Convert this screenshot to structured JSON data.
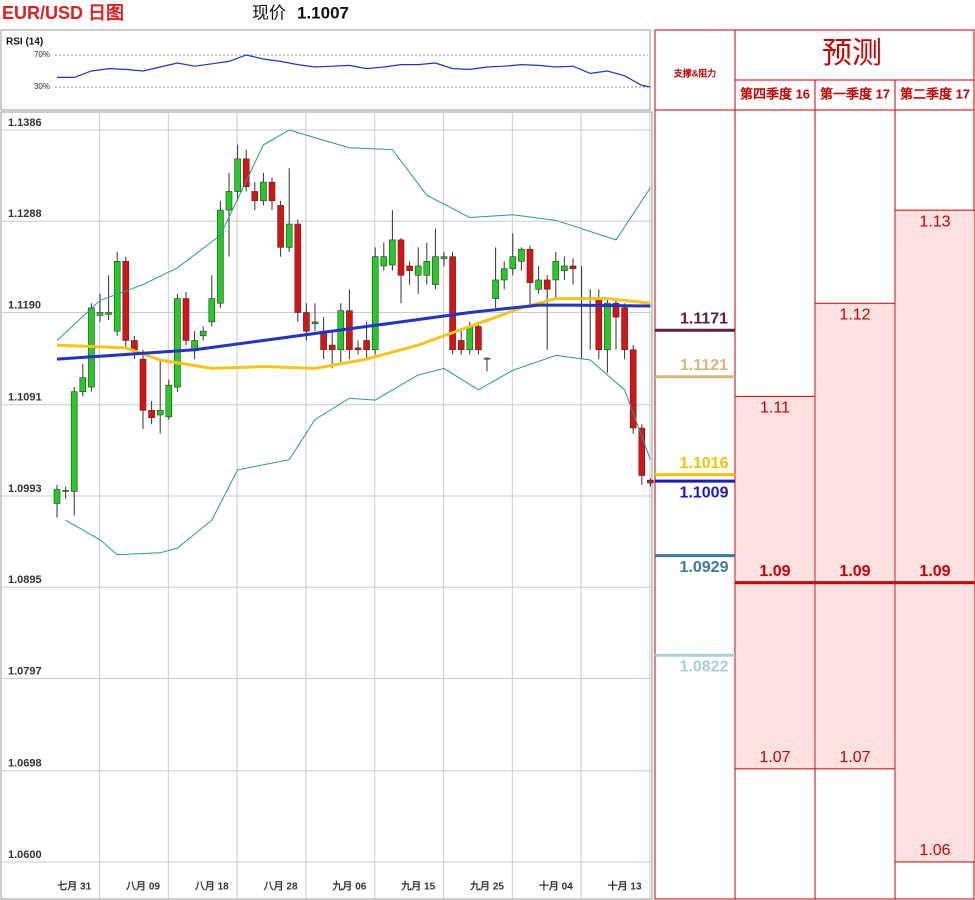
{
  "header": {
    "title": "EUR/USD 日图",
    "price_label": "现价",
    "price": 1.1007
  },
  "chart_data": [
    {
      "type": "candlestick",
      "categories": [
        null,
        null,
        "七月 31",
        null,
        null,
        null,
        null,
        null,
        null,
        null,
        "八月 09",
        null,
        null,
        null,
        null,
        null,
        null,
        null,
        "八月 18",
        null,
        null,
        null,
        null,
        null,
        null,
        null,
        "八月 28",
        null,
        null,
        null,
        null,
        null,
        null,
        null,
        "九月 06",
        null,
        null,
        null,
        null,
        null,
        null,
        null,
        "九月 15",
        null,
        null,
        null,
        null,
        null,
        null,
        null,
        "九月 25",
        null,
        null,
        null,
        null,
        null,
        null,
        null,
        "十月 04",
        null,
        null,
        null,
        null,
        null,
        null,
        null,
        "十月 13",
        null,
        null,
        null
      ],
      "open": [
        1.0985,
        1.0998,
        1.0998,
        1.1105,
        1.111,
        1.1187,
        1.1188,
        1.117,
        1.1245,
        1.116,
        1.114,
        1.1085,
        1.108,
        1.1078,
        1.111,
        1.1205,
        1.115,
        1.1165,
        1.118,
        1.12,
        1.13,
        1.132,
        1.1355,
        1.132,
        1.131,
        1.133,
        1.1305,
        1.126,
        1.1285,
        1.119,
        1.1178,
        1.117,
        1.1155,
        1.115,
        1.1192,
        1.1152,
        1.116,
        1.115,
        1.124,
        1.1241,
        1.1268,
        1.124,
        1.123,
        1.123,
        1.122,
        1.1248,
        1.125,
        1.116,
        1.115,
        1.1175,
        1.114,
        1.1205,
        1.1225,
        1.1237,
        1.1245,
        1.1258,
        1.1215,
        1.1225,
        1.1225,
        1.1235,
        1.124,
        1.1205,
        1.1205,
        1.1205,
        1.115,
        1.12,
        1.1195,
        1.115,
        1.1066,
        1.101
      ],
      "high": [
        1.1005,
        1.1003,
        1.111,
        1.1135,
        1.12,
        1.121,
        1.123,
        1.1255,
        1.125,
        1.1165,
        1.115,
        1.1095,
        1.114,
        1.1118,
        1.121,
        1.1212,
        1.117,
        1.1175,
        1.123,
        1.131,
        1.134,
        1.137,
        1.1365,
        1.133,
        1.134,
        1.1335,
        1.131,
        1.1345,
        1.129,
        1.12,
        1.12,
        1.1185,
        1.117,
        1.12,
        1.1215,
        1.116,
        1.118,
        1.126,
        1.1265,
        1.13,
        1.127,
        1.1245,
        1.126,
        1.1265,
        1.128,
        1.1255,
        1.1255,
        1.117,
        1.118,
        1.118,
        1.1142,
        1.126,
        1.1245,
        1.1275,
        1.126,
        1.1262,
        1.124,
        1.123,
        1.1255,
        1.125,
        1.1248,
        1.124,
        1.1215,
        1.1215,
        1.1205,
        1.1205,
        1.12,
        1.1155,
        1.107,
        1.1012
      ],
      "low": [
        1.097,
        1.099,
        1.0972,
        1.11,
        1.1105,
        1.118,
        1.1182,
        1.1165,
        1.115,
        1.114,
        1.1065,
        1.107,
        1.106,
        1.1075,
        1.1105,
        1.1155,
        1.114,
        1.116,
        1.1175,
        1.1195,
        1.125,
        1.131,
        1.132,
        1.13,
        1.1305,
        1.13,
        1.125,
        1.1255,
        1.118,
        1.116,
        1.117,
        1.114,
        1.113,
        1.1135,
        1.114,
        1.1145,
        1.114,
        1.1145,
        1.1235,
        1.1235,
        1.12,
        1.122,
        1.121,
        1.122,
        1.1215,
        1.124,
        1.1145,
        1.1145,
        1.1145,
        1.1145,
        1.1127,
        1.1195,
        1.1215,
        1.123,
        1.1235,
        1.1195,
        1.121,
        1.115,
        1.1205,
        1.1225,
        1.122,
        1.114,
        1.115,
        1.114,
        1.1125,
        1.115,
        1.114,
        1.106,
        1.1005,
        1.1003
      ],
      "close": [
        1.1,
        1.0999,
        1.1105,
        1.112,
        1.1195,
        1.119,
        1.119,
        1.1245,
        1.116,
        1.115,
        1.1085,
        1.1077,
        1.1085,
        1.1112,
        1.1205,
        1.116,
        1.116,
        1.117,
        1.1205,
        1.13,
        1.132,
        1.1355,
        1.1325,
        1.131,
        1.133,
        1.131,
        1.126,
        1.1285,
        1.119,
        1.117,
        1.118,
        1.115,
        1.115,
        1.1192,
        1.115,
        1.115,
        1.115,
        1.125,
        1.125,
        1.1268,
        1.123,
        1.1235,
        1.124,
        1.1245,
        1.125,
        1.125,
        1.115,
        1.115,
        1.1175,
        1.115,
        1.1141,
        1.1225,
        1.1237,
        1.125,
        1.1258,
        1.1222,
        1.1225,
        1.1215,
        1.1245,
        1.124,
        1.1237,
        1.1206,
        1.1206,
        1.115,
        1.12,
        1.1185,
        1.115,
        1.1066,
        1.1015,
        1.1007
      ],
      "up_color": "#22cc22",
      "down_color": "#dd1111",
      "overlays": [
        {
          "color": "#2a9a8a",
          "x": [
            0,
            5,
            10,
            14,
            19,
            24,
            27,
            31,
            34,
            39,
            43,
            48,
            53,
            58,
            65,
            69
          ],
          "values": [
            1.116,
            1.1203,
            1.122,
            1.1238,
            1.1273,
            1.137,
            1.1386,
            1.1375,
            1.1367,
            1.1365,
            1.1316,
            1.1292,
            1.1295,
            1.1289,
            1.1268,
            1.1324
          ]
        },
        {
          "color": "#2a9a8a",
          "x": [
            1,
            5,
            7,
            12,
            14,
            18,
            21,
            27,
            30,
            34,
            37,
            42,
            45,
            49,
            53,
            58,
            62,
            66,
            69
          ],
          "values": [
            1.0967,
            1.0946,
            1.093,
            1.0932,
            1.0937,
            1.0967,
            1.1021,
            1.1032,
            1.1075,
            1.1098,
            1.1096,
            1.1123,
            1.113,
            1.1107,
            1.1128,
            1.1144,
            1.1139,
            1.1107,
            1.1032
          ]
        },
        {
          "color": "#f5c518",
          "x": [
            0,
            8,
            12,
            18,
            24,
            30,
            36,
            42,
            48,
            54,
            58,
            64,
            69
          ],
          "values": [
            1.1155,
            1.1152,
            1.1139,
            1.113,
            1.1132,
            1.113,
            1.114,
            1.1155,
            1.1175,
            1.1195,
            1.1205,
            1.1205,
            1.12
          ]
        },
        {
          "color": "#2233cc",
          "x": [
            0,
            8,
            16,
            24,
            32,
            40,
            48,
            56,
            60,
            69
          ],
          "values": [
            1.114,
            1.1145,
            1.115,
            1.116,
            1.117,
            1.118,
            1.119,
            1.1198,
            1.1198,
            1.1197
          ]
        }
      ],
      "ylim": [
        1.06,
        1.1386
      ],
      "yticks": [
        1.1386,
        1.1288,
        {
          "value": 1.119,
          "label": "1.1190"
        },
        1.1091,
        1.0993,
        1.0895,
        1.0797,
        1.0698,
        {
          "value": 1.06,
          "label": "1.0600"
        }
      ],
      "grid": true
    },
    {
      "type": "line",
      "title": "RSI (14)",
      "color": "#2233cc",
      "x": [
        0,
        2,
        4,
        6,
        8,
        10,
        12,
        14,
        16,
        18,
        20,
        22,
        24,
        26,
        28,
        30,
        32,
        34,
        36,
        38,
        40,
        42,
        44,
        46,
        48,
        50,
        52,
        54,
        56,
        58,
        60,
        62,
        64,
        66,
        68,
        69
      ],
      "values": [
        42,
        42,
        50,
        53,
        52,
        50,
        55,
        60,
        56,
        59,
        62,
        70,
        65,
        62,
        58,
        55,
        56,
        57,
        53,
        55,
        58,
        58,
        60,
        53,
        52,
        55,
        56,
        58,
        57,
        55,
        56,
        47,
        50,
        44,
        32,
        30
      ],
      "ylim": [
        0,
        100
      ],
      "yticks": [
        {
          "value": 70,
          "label": "70%"
        },
        {
          "value": 30,
          "label": "30%"
        }
      ]
    }
  ],
  "support_resistance": {
    "title": "支撑&阻力",
    "levels": [
      {
        "value": 1.1171,
        "color": "#5c1f3f"
      },
      {
        "value": 1.1121,
        "color": "#d8b878"
      },
      {
        "value": 1.1016,
        "color": "#f5c400"
      },
      {
        "value": 1.1009,
        "color": "#1a1acc"
      },
      {
        "value": 1.0929,
        "color": "#3a7a9a"
      },
      {
        "value": 1.0822,
        "color": "#a8d0d8"
      }
    ]
  },
  "forecast": {
    "title": "预测",
    "columns": [
      {
        "name": "第四季度 16",
        "values": [
          1.11,
          1.09,
          1.07
        ]
      },
      {
        "name": "第一季度 17",
        "values": [
          1.12,
          1.09,
          1.07
        ]
      },
      {
        "name": "第二季度 17",
        "values": [
          1.13,
          1.09,
          1.06
        ]
      }
    ]
  }
}
